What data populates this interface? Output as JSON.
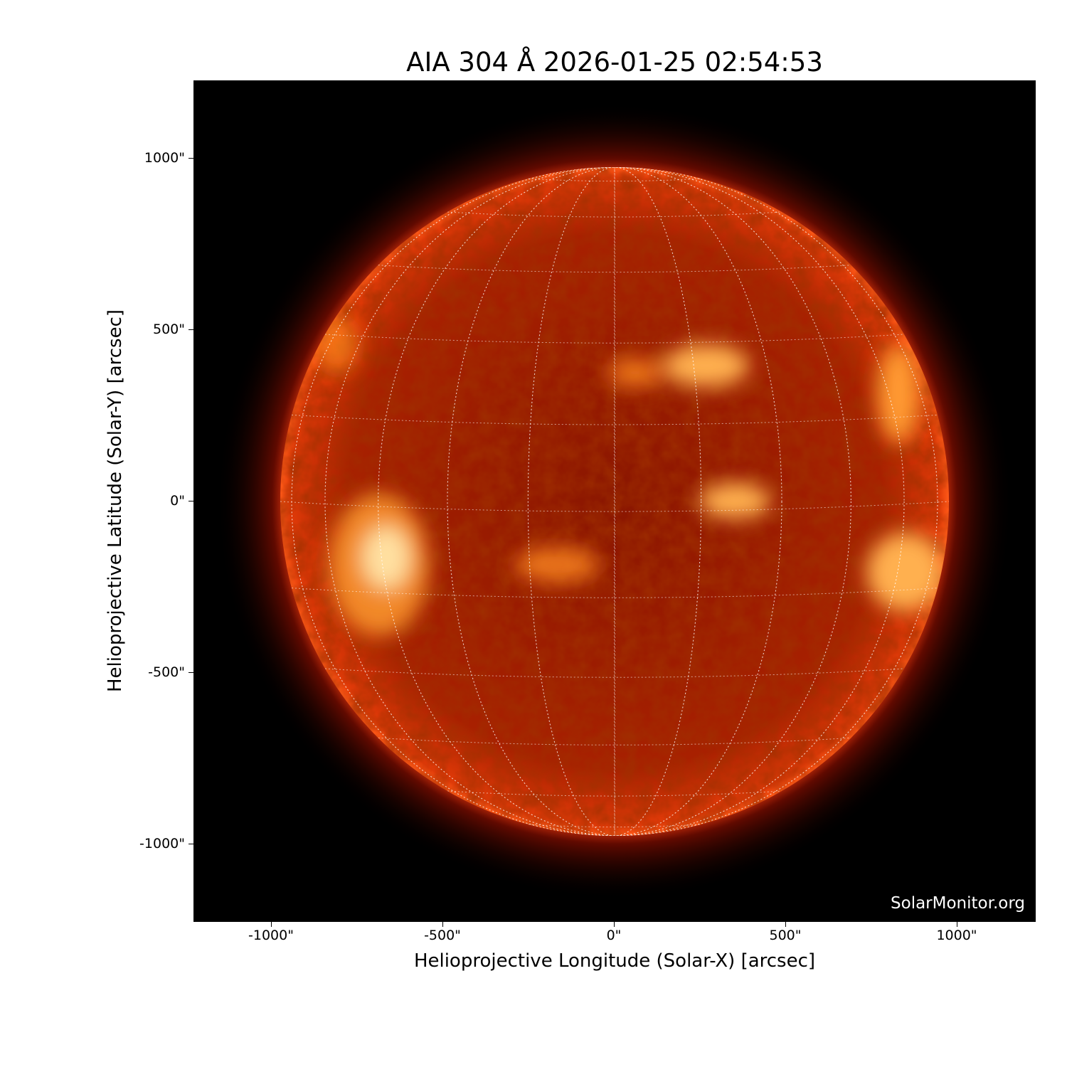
{
  "title": "AIA 304 Å 2026-01-25 02:54:53",
  "xlabel": "Helioprojective Longitude (Solar-X) [arcsec]",
  "ylabel": "Helioprojective Latitude (Solar-Y) [arcsec]",
  "credit": "SolarMonitor.org",
  "x_ticks": [
    "-1000\"",
    "-500\"",
    "0\"",
    "500\"",
    "1000\""
  ],
  "y_ticks": [
    "1000\"",
    "500\"",
    "0\"",
    "-500\"",
    "-1000\""
  ],
  "x_tick_values": [
    -1000,
    -500,
    0,
    500,
    1000
  ],
  "y_tick_values": [
    1000,
    500,
    0,
    -500,
    -1000
  ],
  "axis_range_arcsec": {
    "x": [
      -1230,
      1230
    ],
    "y": [
      -1230,
      1230
    ]
  },
  "solar_radius_arcsec": 975,
  "grid_spacing_deg": 15,
  "colors": {
    "disk_base": "#a01800",
    "disk_bright": "#ffb040",
    "limb": "#ff4a10",
    "background": "#000000"
  }
}
